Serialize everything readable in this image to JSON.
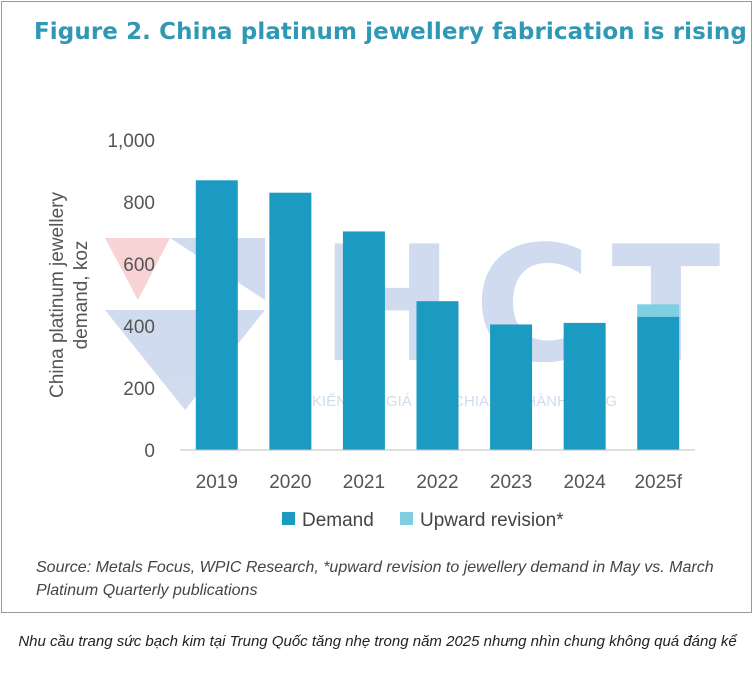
{
  "title": "Figure 2. China platinum jewellery fabrication is rising",
  "source": "Source: Metals Focus, WPIC Research, *upward revision to jewellery demand in May vs. March Platinum Quarterly publications",
  "caption": "Nhu cầu trang sức bạch kim tại Trung Quốc tăng nhẹ trong năm 2025 nhưng nhìn chung không quá đáng kể",
  "watermark": {
    "logo_text": "HCT",
    "slogan": "KIẾN TẠO GIÁ TRỊ - CHIA SẺ THÀNH CÔNG"
  },
  "colors": {
    "title": "#2f98b4",
    "demand": "#1b9bc2",
    "upward": "#7fcfe3"
  },
  "chart_data": {
    "type": "bar",
    "stacked": true,
    "title": "Figure 2. China platinum jewellery fabrication is rising",
    "ylabel_lines": [
      "China platinum jewellery",
      "demand, koz"
    ],
    "categories": [
      "2019",
      "2020",
      "2021",
      "2022",
      "2023",
      "2024",
      "2025f"
    ],
    "series": [
      {
        "name": "Demand",
        "values": [
          870,
          830,
          705,
          480,
          405,
          410,
          430
        ]
      },
      {
        "name": "Upward revision*",
        "values": [
          0,
          0,
          0,
          0,
          0,
          0,
          40
        ]
      }
    ],
    "ylim": [
      0,
      1000
    ],
    "yticks": [
      "0",
      "200",
      "400",
      "600",
      "800",
      "1,000"
    ],
    "ytick_values": [
      0,
      200,
      400,
      600,
      800,
      1000
    ],
    "grid": false,
    "legend_position": "bottom"
  }
}
